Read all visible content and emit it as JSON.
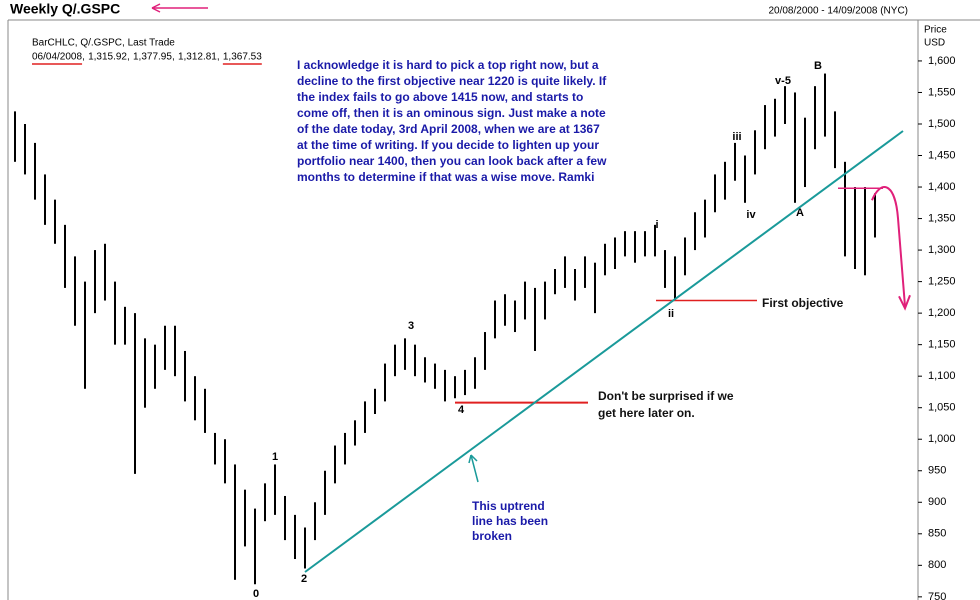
{
  "chart_data": {
    "type": "ohlc",
    "title": "Weekly Q/.GSPC",
    "date_range": "20/08/2000 - 14/09/2008 (NYC)",
    "y_axis_label": [
      "Price",
      "USD"
    ],
    "legend_title": "BarCHLC, Q/.GSPC, Last Trade",
    "legend_values": [
      "06/04/2008",
      "1,315.92",
      "1,377.95",
      "1,312.81",
      "1,367.53"
    ],
    "color": "#000000",
    "highs": [
      1520,
      1500,
      1470,
      1420,
      1380,
      1340,
      1290,
      1250,
      1300,
      1310,
      1250,
      1210,
      1200,
      1160,
      1150,
      1180,
      1180,
      1140,
      1100,
      1080,
      1010,
      1000,
      960,
      920,
      890,
      930,
      960,
      910,
      880,
      860,
      900,
      950,
      990,
      1010,
      1030,
      1060,
      1080,
      1120,
      1150,
      1160,
      1150,
      1130,
      1120,
      1110,
      1100,
      1110,
      1130,
      1170,
      1220,
      1230,
      1220,
      1250,
      1240,
      1250,
      1270,
      1290,
      1270,
      1290,
      1280,
      1310,
      1320,
      1330,
      1330,
      1330,
      1340,
      1300,
      1290,
      1320,
      1360,
      1380,
      1420,
      1440,
      1470,
      1450,
      1490,
      1530,
      1540,
      1560,
      1550,
      1510,
      1560,
      1580,
      1520,
      1440,
      1400,
      1400,
      1390
    ],
    "lows": [
      1440,
      1420,
      1380,
      1340,
      1310,
      1240,
      1180,
      1080,
      1200,
      1220,
      1150,
      1150,
      945,
      1050,
      1080,
      1110,
      1100,
      1060,
      1030,
      1010,
      960,
      930,
      777,
      830,
      770,
      870,
      880,
      840,
      810,
      795,
      840,
      880,
      930,
      960,
      990,
      1010,
      1040,
      1060,
      1100,
      1110,
      1100,
      1090,
      1080,
      1060,
      1065,
      1070,
      1080,
      1110,
      1160,
      1180,
      1170,
      1190,
      1140,
      1190,
      1230,
      1240,
      1220,
      1240,
      1200,
      1260,
      1270,
      1290,
      1280,
      1290,
      1290,
      1240,
      1220,
      1260,
      1300,
      1320,
      1360,
      1380,
      1410,
      1375,
      1420,
      1460,
      1480,
      1500,
      1375,
      1400,
      1460,
      1480,
      1430,
      1290,
      1270,
      1260,
      1320
    ],
    "ylim": [
      745,
      1657
    ],
    "yticks": [
      750,
      800,
      850,
      900,
      950,
      {
        "value": 1000,
        "label": "1,000"
      },
      {
        "value": 1050,
        "label": "1,050"
      },
      {
        "value": 1100,
        "label": "1,100"
      },
      {
        "value": 1150,
        "label": "1,150"
      },
      {
        "value": 1200,
        "label": "1,200"
      },
      {
        "value": 1250,
        "label": "1,250"
      },
      {
        "value": 1300,
        "label": "1,300"
      },
      {
        "value": 1350,
        "label": "1,350"
      },
      {
        "value": 1400,
        "label": "1,400"
      },
      {
        "value": 1450,
        "label": "1,450"
      },
      {
        "value": 1500,
        "label": "1,500"
      },
      {
        "value": 1550,
        "label": "1,550"
      },
      {
        "value": 1600,
        "label": "1,600"
      }
    ],
    "wave_labels": [
      "0",
      "1",
      "2",
      "3",
      "4",
      "i",
      "ii",
      "iii",
      "iv",
      "v-5",
      "A",
      "B"
    ],
    "commentary": [
      "I acknowledge it is hard to pick a top right now, but a",
      "decline to the first objective near 1220 is quite likely.  If",
      "the index fails to go above 1415 now, and starts to",
      "come off, then it is an ominous sign. Just make a note",
      "of the date today, 3rd April 2008, when we are at 1367",
      "at the time of writing. If you decide to lighten up your",
      "portfolio near 1400, then you can look back after a few",
      "months to determine if that was a wise move. Ramki"
    ],
    "first_objective_label": "First objective",
    "retest_note": [
      "Don't be surprised if we",
      "get here later on."
    ],
    "trend_note": [
      "This uptrend",
      "line has been",
      "broken"
    ],
    "levels": {
      "first_objective": 1220,
      "retest": 1058,
      "breakdown": 1398
    }
  }
}
